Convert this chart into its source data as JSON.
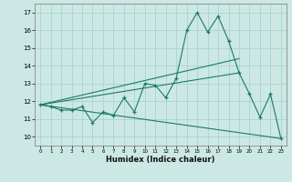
{
  "xlabel": "Humidex (Indice chaleur)",
  "ylabel": "",
  "bg_color": "#cce8e4",
  "grid_color": "#aad4cc",
  "line_color": "#1a7a6a",
  "xlim": [
    -0.5,
    23.5
  ],
  "ylim": [
    9.5,
    17.5
  ],
  "yticks": [
    10,
    11,
    12,
    13,
    14,
    15,
    16,
    17
  ],
  "xticks": [
    0,
    1,
    2,
    3,
    4,
    5,
    6,
    7,
    8,
    9,
    10,
    11,
    12,
    13,
    14,
    15,
    16,
    17,
    18,
    19,
    20,
    21,
    22,
    23
  ],
  "main_line_x": [
    0,
    1,
    2,
    3,
    4,
    5,
    6,
    7,
    8,
    9,
    10,
    11,
    12,
    13,
    14,
    15,
    16,
    17,
    18,
    19,
    20,
    21,
    22,
    23
  ],
  "main_line_y": [
    11.8,
    11.7,
    11.5,
    11.5,
    11.7,
    10.8,
    11.4,
    11.2,
    12.2,
    11.4,
    13.0,
    12.9,
    12.2,
    13.3,
    16.0,
    17.0,
    15.9,
    16.8,
    15.4,
    13.6,
    12.4,
    11.1,
    12.4,
    9.9
  ],
  "trend1_x": [
    0,
    19
  ],
  "trend1_y": [
    11.8,
    14.4
  ],
  "trend2_x": [
    0,
    19
  ],
  "trend2_y": [
    11.8,
    13.6
  ],
  "trend3_x": [
    0,
    23
  ],
  "trend3_y": [
    11.8,
    9.9
  ]
}
